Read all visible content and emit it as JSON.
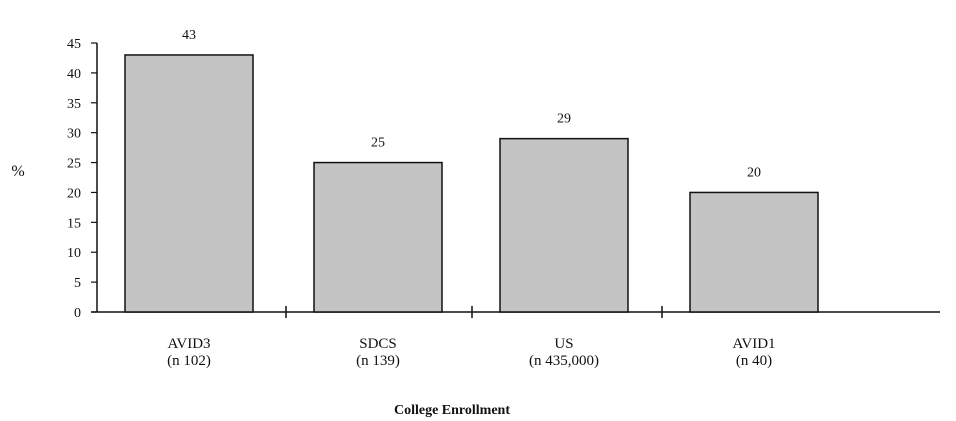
{
  "chart_data": {
    "type": "bar",
    "title": "",
    "xlabel": "College Enrollment",
    "ylabel": "%",
    "ylim": [
      0,
      45
    ],
    "yticks": [
      "0",
      "5",
      "10",
      "15",
      "20",
      "25",
      "30",
      "35",
      "40",
      "45"
    ],
    "categories": [
      {
        "name": "AVID3",
        "n": "(n  102)"
      },
      {
        "name": "SDCS",
        "n": "(n  139)"
      },
      {
        "name": "US",
        "n": "(n  435,000)"
      },
      {
        "name": "AVID1",
        "n": "(n  40)"
      }
    ],
    "values": [
      43,
      25,
      29,
      20
    ],
    "data_labels": [
      "43",
      "25",
      "29",
      "20"
    ],
    "grid": false,
    "legend": "none",
    "colors": {
      "bar_fill": "#c4c4c4",
      "bar_stroke": "#111111",
      "axis": "#111111"
    }
  }
}
